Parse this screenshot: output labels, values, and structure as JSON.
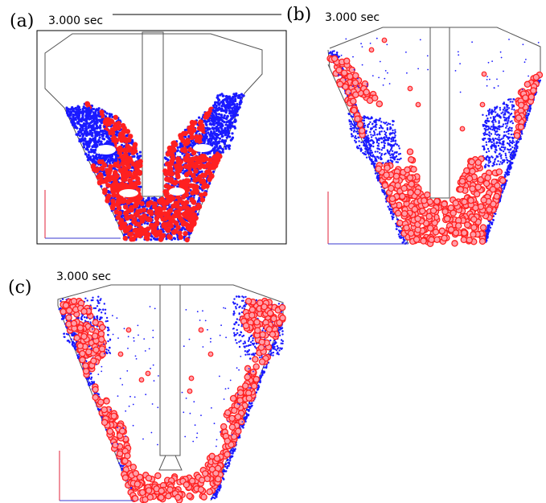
{
  "panels": [
    {
      "id": "a",
      "label": "(a)",
      "time": "3.000 sec"
    },
    {
      "id": "b",
      "label": "(b)",
      "time": "3.000 sec"
    },
    {
      "id": "c",
      "label": "(c)",
      "time": "3.000 sec"
    }
  ],
  "colors": {
    "particle_large": "#ff2020",
    "particle_small": "#1a1aff",
    "wall": "#555555",
    "axis_vertical": "#e0203a",
    "axis_horizontal": "#3a3ad0"
  }
}
